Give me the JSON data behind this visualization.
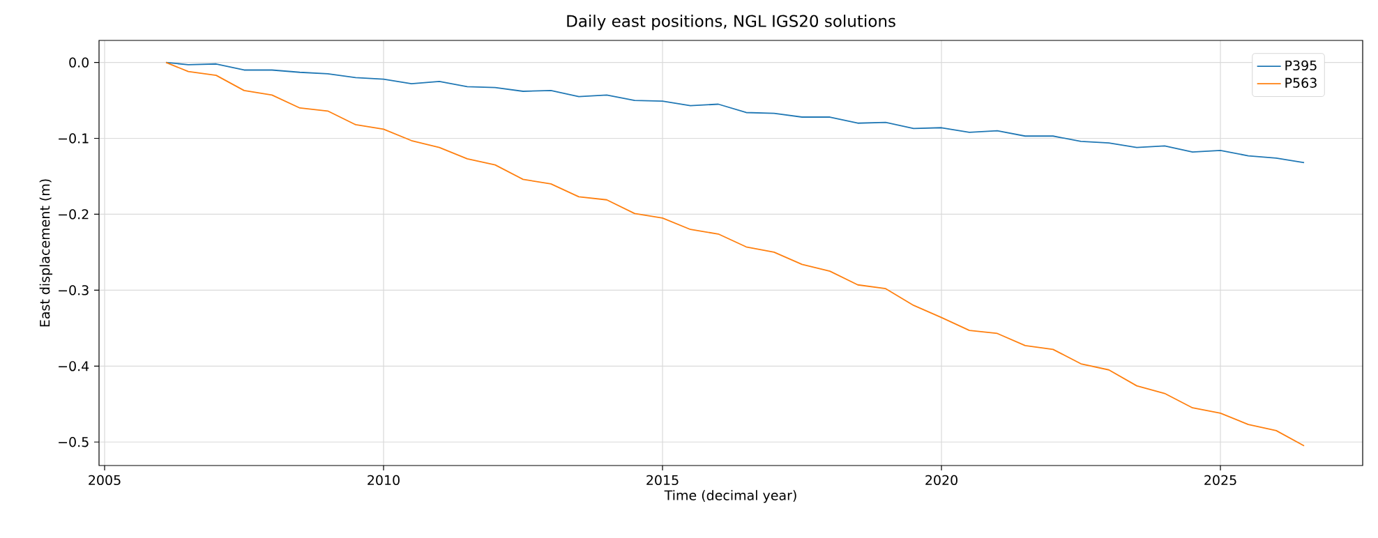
{
  "chart_data": {
    "type": "line",
    "title": "Daily east positions, NGL IGS20 solutions",
    "xlabel": "Time (decimal year)",
    "ylabel": "East displacement (m)",
    "x": [
      2006.1,
      2006.5,
      2007,
      2007.5,
      2008,
      2008.5,
      2009,
      2009.5,
      2010,
      2010.5,
      2011,
      2011.5,
      2012,
      2012.5,
      2013,
      2013.5,
      2014,
      2014.5,
      2015,
      2015.5,
      2016,
      2016.5,
      2017,
      2017.5,
      2018,
      2018.5,
      2019,
      2019.5,
      2020,
      2020.5,
      2021,
      2021.5,
      2022,
      2022.5,
      2023,
      2023.5,
      2024,
      2024.5,
      2025,
      2025.5,
      2026,
      2026.5
    ],
    "series": [
      {
        "name": "P395",
        "color": "#1f77b4",
        "values": [
          0,
          -0.003,
          -0.002,
          -0.01,
          -0.01,
          -0.013,
          -0.015,
          -0.02,
          -0.022,
          -0.028,
          -0.025,
          -0.032,
          -0.033,
          -0.038,
          -0.037,
          -0.045,
          -0.043,
          -0.05,
          -0.051,
          -0.057,
          -0.055,
          -0.066,
          -0.067,
          -0.072,
          -0.072,
          -0.08,
          -0.079,
          -0.087,
          -0.086,
          -0.092,
          -0.09,
          -0.097,
          -0.097,
          -0.104,
          -0.106,
          -0.112,
          -0.11,
          -0.118,
          -0.116,
          -0.123,
          -0.126,
          -0.132
        ]
      },
      {
        "name": "P563",
        "color": "#ff7f0e",
        "values": [
          0,
          -0.012,
          -0.017,
          -0.037,
          -0.043,
          -0.06,
          -0.064,
          -0.082,
          -0.088,
          -0.103,
          -0.112,
          -0.127,
          -0.135,
          -0.154,
          -0.16,
          -0.177,
          -0.181,
          -0.199,
          -0.205,
          -0.22,
          -0.226,
          -0.243,
          -0.25,
          -0.266,
          -0.275,
          -0.293,
          -0.298,
          -0.32,
          -0.336,
          -0.353,
          -0.357,
          -0.373,
          -0.378,
          -0.397,
          -0.405,
          -0.426,
          -0.436,
          -0.455,
          -0.462,
          -0.477,
          -0.485,
          -0.505
        ]
      }
    ],
    "xlim": [
      2004.9,
      2027.55
    ],
    "ylim": [
      -0.531,
      0.029
    ],
    "xticks": [
      2005,
      2010,
      2015,
      2020,
      2025
    ],
    "yticks": [
      {
        "value": 0,
        "label": "0.0"
      },
      {
        "value": -0.1,
        "label": "−0.1"
      },
      {
        "value": -0.2,
        "label": "−0.2"
      },
      {
        "value": -0.3,
        "label": "−0.3"
      },
      {
        "value": -0.4,
        "label": "−0.4"
      },
      {
        "value": -0.5,
        "label": "−0.5"
      }
    ],
    "grid": true,
    "legend": "top right",
    "marker": "none",
    "line_style": "solid"
  }
}
